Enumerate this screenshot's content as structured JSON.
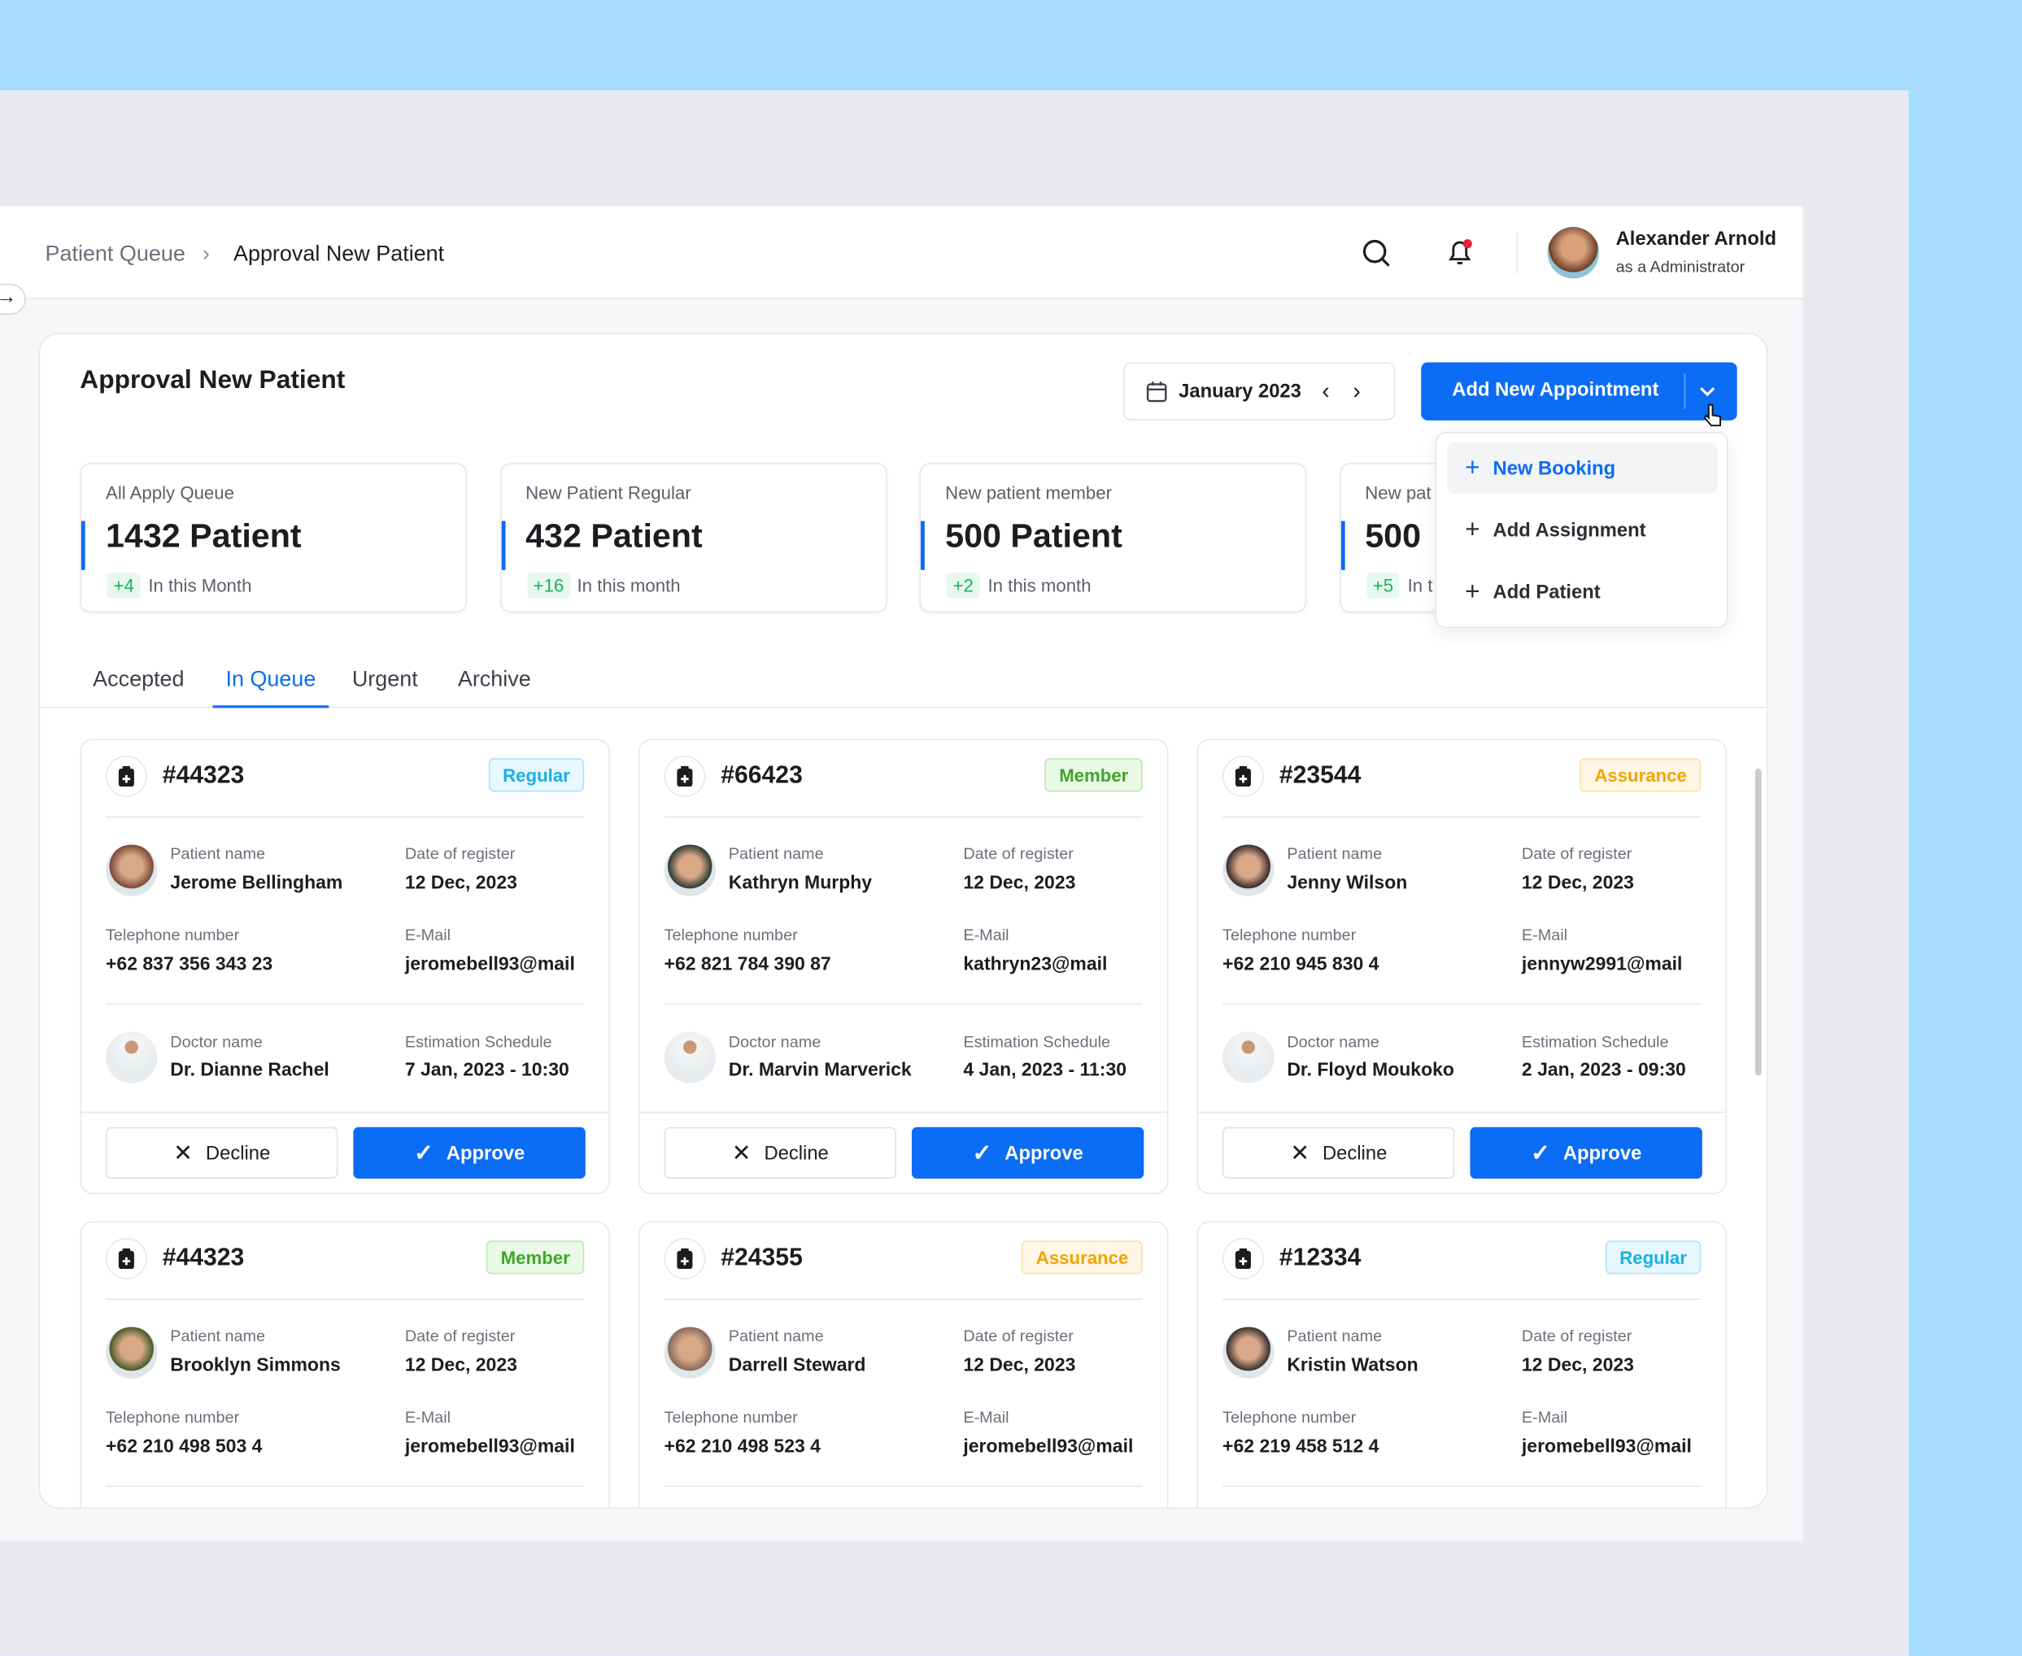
{
  "breadcrumb": {
    "parent": "Patient Queue",
    "current": "Approval New Patient"
  },
  "user": {
    "name": "Alexander Arnold",
    "role": "as a Administrator"
  },
  "page_title": "Approval New Patient",
  "date_picker": {
    "value": "January 2023"
  },
  "add_button": {
    "label": "Add New  Appointment"
  },
  "dropdown": {
    "items": [
      {
        "label": "New Booking"
      },
      {
        "label": "Add Assignment"
      },
      {
        "label": "Add Patient"
      }
    ]
  },
  "stats": [
    {
      "label": "All Apply Queue",
      "value": "1432 Patient",
      "delta": "+4",
      "period": "In this Month"
    },
    {
      "label": "New Patient Regular",
      "value": "432 Patient",
      "delta": "+16",
      "period": "In this month"
    },
    {
      "label": "New patient member",
      "value": "500 Patient",
      "delta": "+2",
      "period": "In this month"
    },
    {
      "label": "New pat",
      "value": "500",
      "delta": "+5",
      "period": "In t"
    }
  ],
  "tabs": [
    {
      "label": "Accepted"
    },
    {
      "label": "In Queue"
    },
    {
      "label": "Urgent"
    },
    {
      "label": "Archive"
    }
  ],
  "labels": {
    "patient_name": "Patient name",
    "date_of_register": "Date of register",
    "telephone": "Telephone number",
    "email": "E-Mail",
    "doctor_name": "Doctor name",
    "schedule": "Estimation Schedule",
    "decline": "Decline",
    "approve": "Approve"
  },
  "colors": {
    "accent": "#0b6cf5",
    "regular": "#1bb0e0",
    "member": "#3fa52b",
    "assurance": "#f0a500"
  },
  "cards": [
    {
      "id": "#44323",
      "badge": "Regular",
      "patient": "Jerome Bellingham",
      "date": "12 Dec, 2023",
      "phone": "+62 837 356 343 23",
      "email": "jeromebell93@mail",
      "doctor": "Dr. Dianne Rachel",
      "schedule": "7 Jan, 2023 - 10:30"
    },
    {
      "id": "#66423",
      "badge": "Member",
      "patient": "Kathryn Murphy",
      "date": "12 Dec, 2023",
      "phone": "+62 821 784 390 87",
      "email": "kathryn23@mail",
      "doctor": "Dr. Marvin Marverick",
      "schedule": "4 Jan, 2023 - 11:30"
    },
    {
      "id": "#23544",
      "badge": "Assurance",
      "patient": "Jenny Wilson",
      "date": "12 Dec, 2023",
      "phone": "+62 210 945 830 4",
      "email": "jennyw2991@mail",
      "doctor": "Dr. Floyd Moukoko",
      "schedule": "2 Jan, 2023 - 09:30"
    },
    {
      "id": "#44323",
      "badge": "Member",
      "patient": "Brooklyn Simmons",
      "date": "12 Dec, 2023",
      "phone": "+62 210 498 503 4",
      "email": "jeromebell93@mail"
    },
    {
      "id": "#24355",
      "badge": "Assurance",
      "patient": "Darrell Steward",
      "date": "12 Dec, 2023",
      "phone": "+62 210 498 523 4",
      "email": "jeromebell93@mail"
    },
    {
      "id": "#12334",
      "badge": "Regular",
      "patient": "Kristin Watson",
      "date": "12 Dec, 2023",
      "phone": "+62 219 458 512 4",
      "email": "jeromebell93@mail"
    }
  ]
}
